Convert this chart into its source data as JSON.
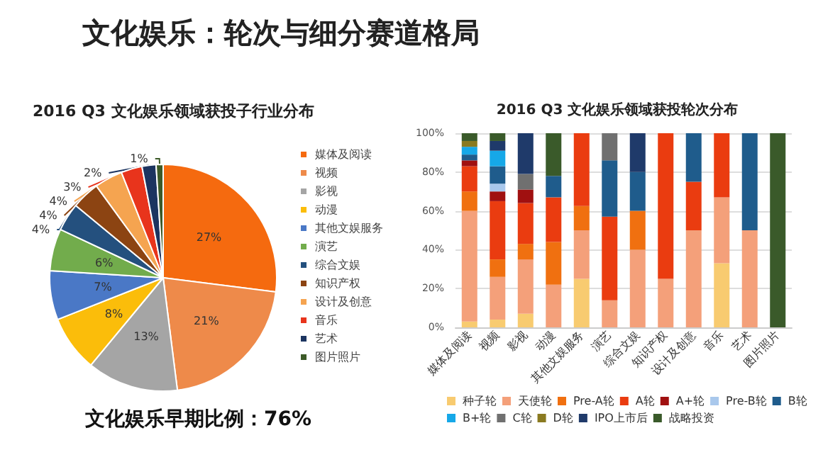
{
  "chart_data": [
    {
      "type": "pie",
      "title": "2016 Q3 文化娱乐领域获投子行业分布",
      "annotations": [
        "文化娱乐：轮次与细分赛道格局",
        "文化娱乐早期比例：76%"
      ],
      "categories": [
        "媒体及阅读",
        "视频",
        "影视",
        "动漫",
        "其他文娱服务",
        "演艺",
        "综合文娱",
        "知识产权",
        "设计及创意",
        "音乐",
        "艺术",
        "图片照片"
      ],
      "values": [
        27,
        21,
        13,
        8,
        7,
        6,
        4,
        4,
        4,
        3,
        2,
        1
      ],
      "value_labels": [
        "27%",
        "21%",
        "13%",
        "8%",
        "7%",
        "6%",
        "4%",
        "4%",
        "4%",
        "3%",
        "2%",
        "1%"
      ],
      "colors": [
        "#f56a0f",
        "#ee8a4a",
        "#a5a5a5",
        "#fbbd0a",
        "#4a78c6",
        "#72ac4c",
        "#24507e",
        "#8c4412",
        "#f5a450",
        "#e8341c",
        "#1c3460",
        "#3c5a28"
      ],
      "legend": "right"
    },
    {
      "type": "bar",
      "title": "2016 Q3 文化娱乐领域获投轮次分布",
      "stacked": true,
      "legend": "bottom",
      "grid": "y",
      "categories": [
        "媒体及阅读",
        "视频",
        "影视",
        "动漫",
        "其他文娱服务",
        "演艺",
        "综合文娱",
        "知识产权",
        "设计及创意",
        "音乐",
        "艺术",
        "图片照片"
      ],
      "ylim": [
        0,
        100
      ],
      "yticks": [
        {
          "value": 0,
          "label": "0%"
        },
        {
          "value": 20,
          "label": "20%"
        },
        {
          "value": 40,
          "label": "40%"
        },
        {
          "value": 60,
          "label": "60%"
        },
        {
          "value": 80,
          "label": "80%"
        },
        {
          "value": 100,
          "label": "100%"
        }
      ],
      "series": [
        {
          "name": "种子轮",
          "color": "#f8cb70",
          "values": [
            3,
            4,
            7,
            0,
            25,
            0,
            0,
            0,
            0,
            33,
            0,
            0
          ]
        },
        {
          "name": "天使轮",
          "color": "#f4a07a",
          "values": [
            57,
            22,
            28,
            22,
            25,
            14,
            40,
            25,
            50,
            34,
            50,
            0
          ]
        },
        {
          "name": "Pre-A轮",
          "color": "#f07010",
          "values": [
            10,
            9,
            8,
            22,
            12.5,
            0,
            20,
            0,
            0,
            0,
            0,
            0
          ]
        },
        {
          "name": "A轮",
          "color": "#ea3c10",
          "values": [
            13,
            30,
            21,
            23,
            37.5,
            43,
            0,
            75,
            25,
            33,
            0,
            0
          ]
        },
        {
          "name": "A+轮",
          "color": "#a01010",
          "values": [
            3,
            5,
            7,
            0,
            0,
            0,
            0,
            0,
            0,
            0,
            0,
            0
          ]
        },
        {
          "name": "Pre-B轮",
          "color": "#a9c8ec",
          "values": [
            0,
            4,
            0,
            0,
            0,
            0,
            0,
            0,
            0,
            0,
            0,
            0
          ]
        },
        {
          "name": "B轮",
          "color": "#1f5c8c",
          "values": [
            3,
            9,
            0,
            11,
            0,
            29,
            20,
            0,
            25,
            0,
            50,
            0
          ]
        },
        {
          "name": "B+轮",
          "color": "#16a8e8",
          "values": [
            4,
            8,
            0,
            0,
            0,
            0,
            0,
            0,
            0,
            0,
            0,
            0
          ]
        },
        {
          "name": "C轮",
          "color": "#707070",
          "values": [
            0,
            0,
            8,
            0,
            0,
            14,
            0,
            0,
            0,
            0,
            0,
            0
          ]
        },
        {
          "name": "D轮",
          "color": "#8a7a20",
          "values": [
            3,
            0,
            0,
            0,
            0,
            0,
            0,
            0,
            0,
            0,
            0,
            0
          ]
        },
        {
          "name": "IPO上市后",
          "color": "#1f3a6a",
          "values": [
            0,
            5,
            21,
            0,
            0,
            0,
            20,
            0,
            0,
            0,
            0,
            0
          ]
        },
        {
          "name": "战略投资",
          "color": "#3a5a2a",
          "values": [
            4,
            4,
            0,
            22,
            0,
            0,
            0,
            0,
            0,
            0,
            0,
            100
          ]
        }
      ]
    }
  ]
}
